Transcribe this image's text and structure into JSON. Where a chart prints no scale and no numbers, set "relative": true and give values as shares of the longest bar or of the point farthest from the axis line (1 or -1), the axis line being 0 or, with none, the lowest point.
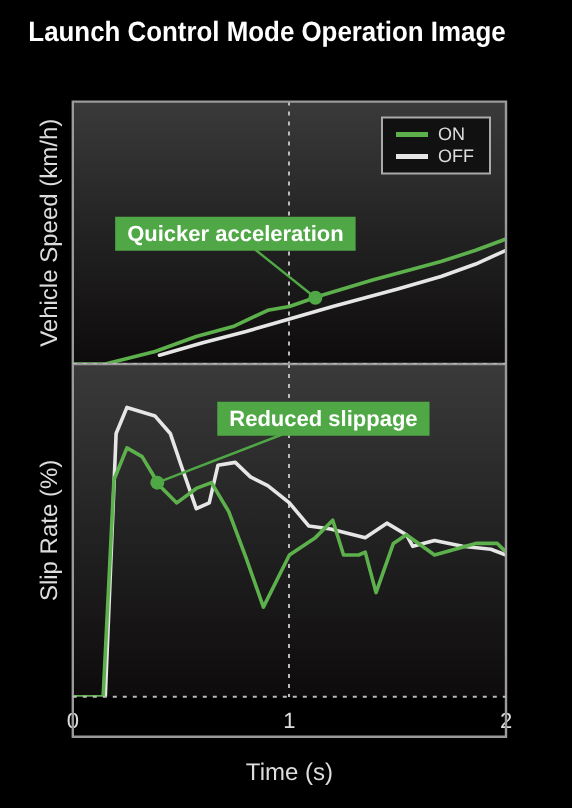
{
  "chart_data": [
    {
      "type": "line",
      "title": "Launch Control Mode Operation Image",
      "ylabel": "Vehicle Speed (km/h)",
      "relative": true,
      "xlim": [
        0,
        2
      ],
      "xticks": [
        0,
        1,
        2
      ],
      "tick_labels": false,
      "grid": "x",
      "legend": "top right",
      "marker": "none",
      "line_style": "solid",
      "annotations": [
        {
          "text": "Quicker acceleration",
          "x": 1.12,
          "y": 0.53
        }
      ],
      "series": [
        {
          "name": "ON",
          "color": "#5db14c",
          "x": [
            0,
            0.15,
            0.38,
            0.57,
            0.74,
            0.9,
            1.0,
            1.15,
            1.38,
            1.7,
            1.86,
            2
          ],
          "values": [
            0,
            0,
            0.1,
            0.22,
            0.3,
            0.43,
            0.46,
            0.55,
            0.67,
            0.82,
            0.91,
            1
          ]
        },
        {
          "name": "OFF",
          "color": "#e6e6e6",
          "x": [
            0.4,
            0.6,
            0.8,
            1.0,
            1.2,
            1.5,
            1.7,
            1.86,
            2
          ],
          "values": [
            0.07,
            0.17,
            0.26,
            0.36,
            0.46,
            0.6,
            0.7,
            0.8,
            0.91
          ]
        }
      ]
    },
    {
      "type": "line",
      "xlabel": "Time (s)",
      "ylabel": "Slip Rate (%)",
      "relative": true,
      "xlim": [
        0,
        2
      ],
      "xticks": [
        0,
        1,
        2
      ],
      "tick_labels": "x",
      "grid": "x",
      "marker": "none",
      "line_style": "solid",
      "annotations": [
        {
          "text": "Reduced slippage",
          "x": 0.39,
          "y": 0.74
        }
      ],
      "series": [
        {
          "color": "#e6e6e6",
          "x": [
            0.15,
            0.2,
            0.25,
            0.38,
            0.45,
            0.5,
            0.57,
            0.63,
            0.67,
            0.75,
            0.82,
            0.9,
            1.0,
            1.09,
            1.19,
            1.35,
            1.45,
            1.54,
            1.57,
            1.67,
            1.8,
            1.93,
            2
          ],
          "values": [
            0,
            0.91,
            1,
            0.97,
            0.91,
            0.8,
            0.65,
            0.67,
            0.8,
            0.81,
            0.76,
            0.73,
            0.67,
            0.59,
            0.58,
            0.55,
            0.6,
            0.56,
            0.52,
            0.54,
            0.52,
            0.51,
            0.49
          ]
        },
        {
          "color": "#5db14c",
          "x": [
            0,
            0.14,
            0.19,
            0.25,
            0.32,
            0.4,
            0.48,
            0.57,
            0.64,
            0.72,
            0.8,
            0.88,
            1.0,
            1.12,
            1.2,
            1.25,
            1.32,
            1.35,
            1.4,
            1.48,
            1.54,
            1.67,
            1.86,
            1.96,
            2
          ],
          "values": [
            0,
            0,
            0.75,
            0.86,
            0.83,
            0.73,
            0.67,
            0.72,
            0.74,
            0.64,
            0.48,
            0.31,
            0.49,
            0.55,
            0.61,
            0.49,
            0.49,
            0.5,
            0.36,
            0.53,
            0.56,
            0.49,
            0.53,
            0.53,
            0.5
          ]
        }
      ]
    }
  ]
}
